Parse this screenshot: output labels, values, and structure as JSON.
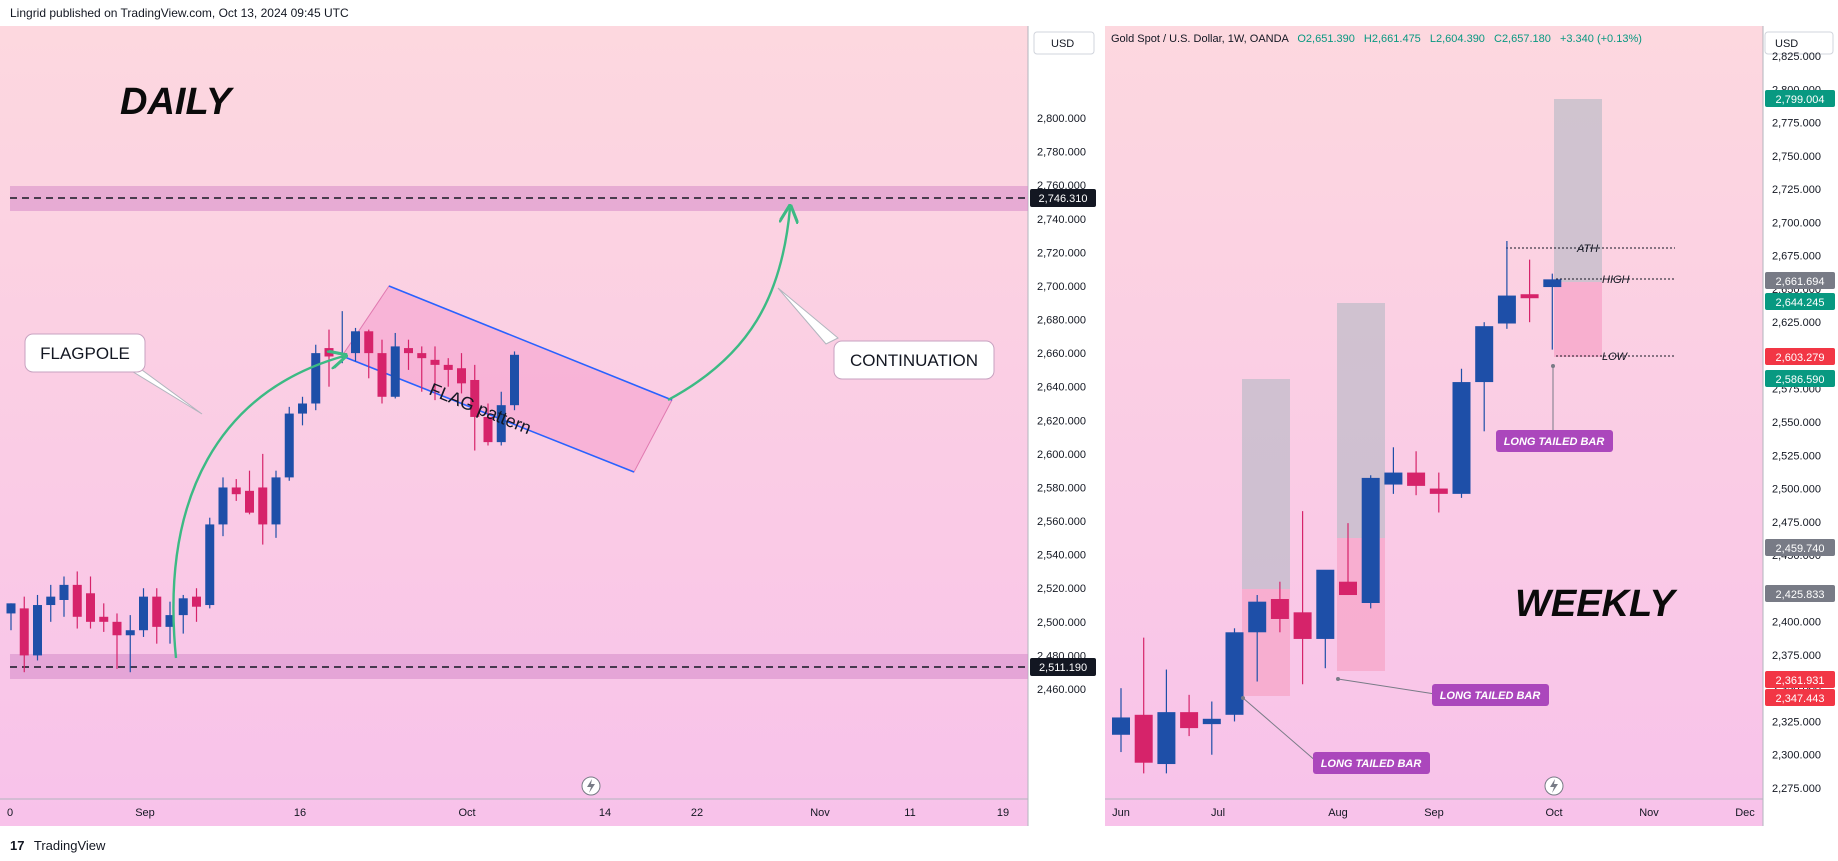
{
  "header": {
    "publisher": "Lingrid published on TradingView.com, Oct 13, 2024 09:45 UTC"
  },
  "footer": {
    "logo": "17",
    "brand": "TradingView"
  },
  "left_chart": {
    "currency": "USD",
    "title_big": "DAILY",
    "annotations": {
      "flagpole": "FLAGPOLE",
      "flag": "FLAG pattern",
      "continuation": "CONTINUATION"
    },
    "price_labels": {
      "upper": "2,746.310",
      "lower": "2,511.190"
    },
    "y_ticks": [
      "2,800.000",
      "2,780.000",
      "2,760.000",
      "2,740.000",
      "2,720.000",
      "2,700.000",
      "2,680.000",
      "2,660.000",
      "2,640.000",
      "2,620.000",
      "2,600.000",
      "2,580.000",
      "2,560.000",
      "2,540.000",
      "2,520.000",
      "2,500.000",
      "2,480.000",
      "2,460.000"
    ],
    "x_ticks": [
      "0",
      "Sep",
      "16",
      "Oct",
      "14",
      "22",
      "Nov",
      "11",
      "19"
    ]
  },
  "right_chart": {
    "currency": "USD",
    "legend": {
      "symbol": "Gold Spot / U.S. Dollar, 1W, OANDA",
      "o": "O2,651.390",
      "h": "H2,661.475",
      "l": "L2,604.390",
      "c": "C2,657.180",
      "chg": "+3.340 (+0.13%)"
    },
    "title_big": "WEEKLY",
    "annotations": {
      "ath": "ATH",
      "high": "HIGH",
      "low": "LOW",
      "long_tailed": "LONG TAILED BAR"
    },
    "price_labels": [
      "2,799.004",
      "2,661.694",
      "2,644.245",
      "2,603.279",
      "2,586.590",
      "2,459.740",
      "2,425.833",
      "2,361.931",
      "2,347.443"
    ],
    "price_label_colors": [
      "#089981",
      "#787b86",
      "#089981",
      "#f23645",
      "#089981",
      "#787b86",
      "#787b86",
      "#f23645",
      "#f23645"
    ],
    "y_ticks": [
      "2,825.000",
      "2,800.000",
      "2,775.000",
      "2,750.000",
      "2,725.000",
      "2,700.000",
      "2,675.000",
      "2,650.000",
      "2,625.000",
      "2,600.000",
      "2,575.000",
      "2,550.000",
      "2,525.000",
      "2,500.000",
      "2,475.000",
      "2,450.000",
      "2,425.000",
      "2,400.000",
      "2,375.000",
      "2,350.000",
      "2,325.000",
      "2,300.000",
      "2,275.000"
    ],
    "x_ticks": [
      "Jun",
      "Jul",
      "Aug",
      "Sep",
      "Oct",
      "Nov",
      "Dec"
    ]
  },
  "colors": {
    "up": "#1e4fa8",
    "down": "#d6236a",
    "zone": "#d58ac9",
    "arrow": "#3cba84",
    "flag_line": "#2962ff",
    "label_purple": "#ab47bc"
  },
  "chart_data": [
    {
      "type": "candlestick",
      "title": "DAILY",
      "ylabel": "USD",
      "ylim": [
        2450,
        2815
      ],
      "horizontal_levels": [
        2746.31,
        2511.19
      ],
      "candles": [
        {
          "o": 2505,
          "h": 2511,
          "l": 2495,
          "c": 2511
        },
        {
          "o": 2508,
          "h": 2515,
          "l": 2470,
          "c": 2480
        },
        {
          "o": 2480,
          "h": 2516,
          "l": 2477,
          "c": 2510
        },
        {
          "o": 2510,
          "h": 2522,
          "l": 2500,
          "c": 2515
        },
        {
          "o": 2513,
          "h": 2527,
          "l": 2503,
          "c": 2522
        },
        {
          "o": 2522,
          "h": 2530,
          "l": 2496,
          "c": 2503
        },
        {
          "o": 2517,
          "h": 2527,
          "l": 2496,
          "c": 2500
        },
        {
          "o": 2503,
          "h": 2511,
          "l": 2494,
          "c": 2500
        },
        {
          "o": 2500,
          "h": 2505,
          "l": 2472,
          "c": 2492
        },
        {
          "o": 2492,
          "h": 2504,
          "l": 2470,
          "c": 2495
        },
        {
          "o": 2495,
          "h": 2520,
          "l": 2491,
          "c": 2515
        },
        {
          "o": 2515,
          "h": 2520,
          "l": 2487,
          "c": 2497
        },
        {
          "o": 2497,
          "h": 2512,
          "l": 2487,
          "c": 2504
        },
        {
          "o": 2504,
          "h": 2516,
          "l": 2493,
          "c": 2514
        },
        {
          "o": 2515,
          "h": 2520,
          "l": 2500,
          "c": 2509
        },
        {
          "o": 2510,
          "h": 2562,
          "l": 2508,
          "c": 2558
        },
        {
          "o": 2558,
          "h": 2586,
          "l": 2551,
          "c": 2580
        },
        {
          "o": 2580,
          "h": 2585,
          "l": 2572,
          "c": 2576
        },
        {
          "o": 2578,
          "h": 2590,
          "l": 2564,
          "c": 2565
        },
        {
          "o": 2580,
          "h": 2600,
          "l": 2546,
          "c": 2558
        },
        {
          "o": 2558,
          "h": 2590,
          "l": 2550,
          "c": 2586
        },
        {
          "o": 2586,
          "h": 2628,
          "l": 2584,
          "c": 2624
        },
        {
          "o": 2624,
          "h": 2634,
          "l": 2617,
          "c": 2630
        },
        {
          "o": 2630,
          "h": 2665,
          "l": 2626,
          "c": 2660
        },
        {
          "o": 2663,
          "h": 2674,
          "l": 2640,
          "c": 2658
        },
        {
          "o": 2660,
          "h": 2685,
          "l": 2654,
          "c": 2660
        },
        {
          "o": 2660,
          "h": 2675,
          "l": 2655,
          "c": 2673
        },
        {
          "o": 2673,
          "h": 2674,
          "l": 2645,
          "c": 2660
        },
        {
          "o": 2660,
          "h": 2668,
          "l": 2630,
          "c": 2634
        },
        {
          "o": 2634,
          "h": 2672,
          "l": 2633,
          "c": 2664
        },
        {
          "o": 2663,
          "h": 2668,
          "l": 2650,
          "c": 2660
        },
        {
          "o": 2660,
          "h": 2664,
          "l": 2637,
          "c": 2657
        },
        {
          "o": 2656,
          "h": 2664,
          "l": 2632,
          "c": 2653
        },
        {
          "o": 2653,
          "h": 2657,
          "l": 2640,
          "c": 2650
        },
        {
          "o": 2651,
          "h": 2660,
          "l": 2636,
          "c": 2642
        },
        {
          "o": 2644,
          "h": 2653,
          "l": 2602,
          "c": 2622
        },
        {
          "o": 2622,
          "h": 2630,
          "l": 2605,
          "c": 2607
        },
        {
          "o": 2607,
          "h": 2637,
          "l": 2605,
          "c": 2629
        },
        {
          "o": 2629,
          "h": 2661,
          "l": 2626,
          "c": 2659
        }
      ]
    },
    {
      "type": "candlestick",
      "title": "WEEKLY",
      "ylabel": "USD",
      "ylim": [
        2262,
        2840
      ],
      "candles": [
        {
          "o": 2315,
          "h": 2350,
          "l": 2302,
          "c": 2328
        },
        {
          "o": 2330,
          "h": 2388,
          "l": 2286,
          "c": 2294
        },
        {
          "o": 2293,
          "h": 2364,
          "l": 2286,
          "c": 2332
        },
        {
          "o": 2332,
          "h": 2345,
          "l": 2314,
          "c": 2320
        },
        {
          "o": 2323,
          "h": 2340,
          "l": 2300,
          "c": 2327
        },
        {
          "o": 2330,
          "h": 2395,
          "l": 2325,
          "c": 2392
        },
        {
          "o": 2392,
          "h": 2420,
          "l": 2355,
          "c": 2415
        },
        {
          "o": 2417,
          "h": 2430,
          "l": 2392,
          "c": 2402
        },
        {
          "o": 2407,
          "h": 2483,
          "l": 2353,
          "c": 2387
        },
        {
          "o": 2387,
          "h": 2437,
          "l": 2365,
          "c": 2439
        },
        {
          "o": 2430,
          "h": 2474,
          "l": 2420,
          "c": 2420
        },
        {
          "o": 2414,
          "h": 2510,
          "l": 2410,
          "c": 2508
        },
        {
          "o": 2503,
          "h": 2531,
          "l": 2496,
          "c": 2512
        },
        {
          "o": 2512,
          "h": 2528,
          "l": 2495,
          "c": 2502
        },
        {
          "o": 2500,
          "h": 2512,
          "l": 2482,
          "c": 2496
        },
        {
          "o": 2496,
          "h": 2590,
          "l": 2493,
          "c": 2580
        },
        {
          "o": 2580,
          "h": 2625,
          "l": 2543,
          "c": 2622
        },
        {
          "o": 2624,
          "h": 2686,
          "l": 2620,
          "c": 2645
        },
        {
          "o": 2646,
          "h": 2672,
          "l": 2625,
          "c": 2643
        },
        {
          "o": 2651.39,
          "h": 2661.475,
          "l": 2604.39,
          "c": 2657.18
        }
      ]
    }
  ]
}
